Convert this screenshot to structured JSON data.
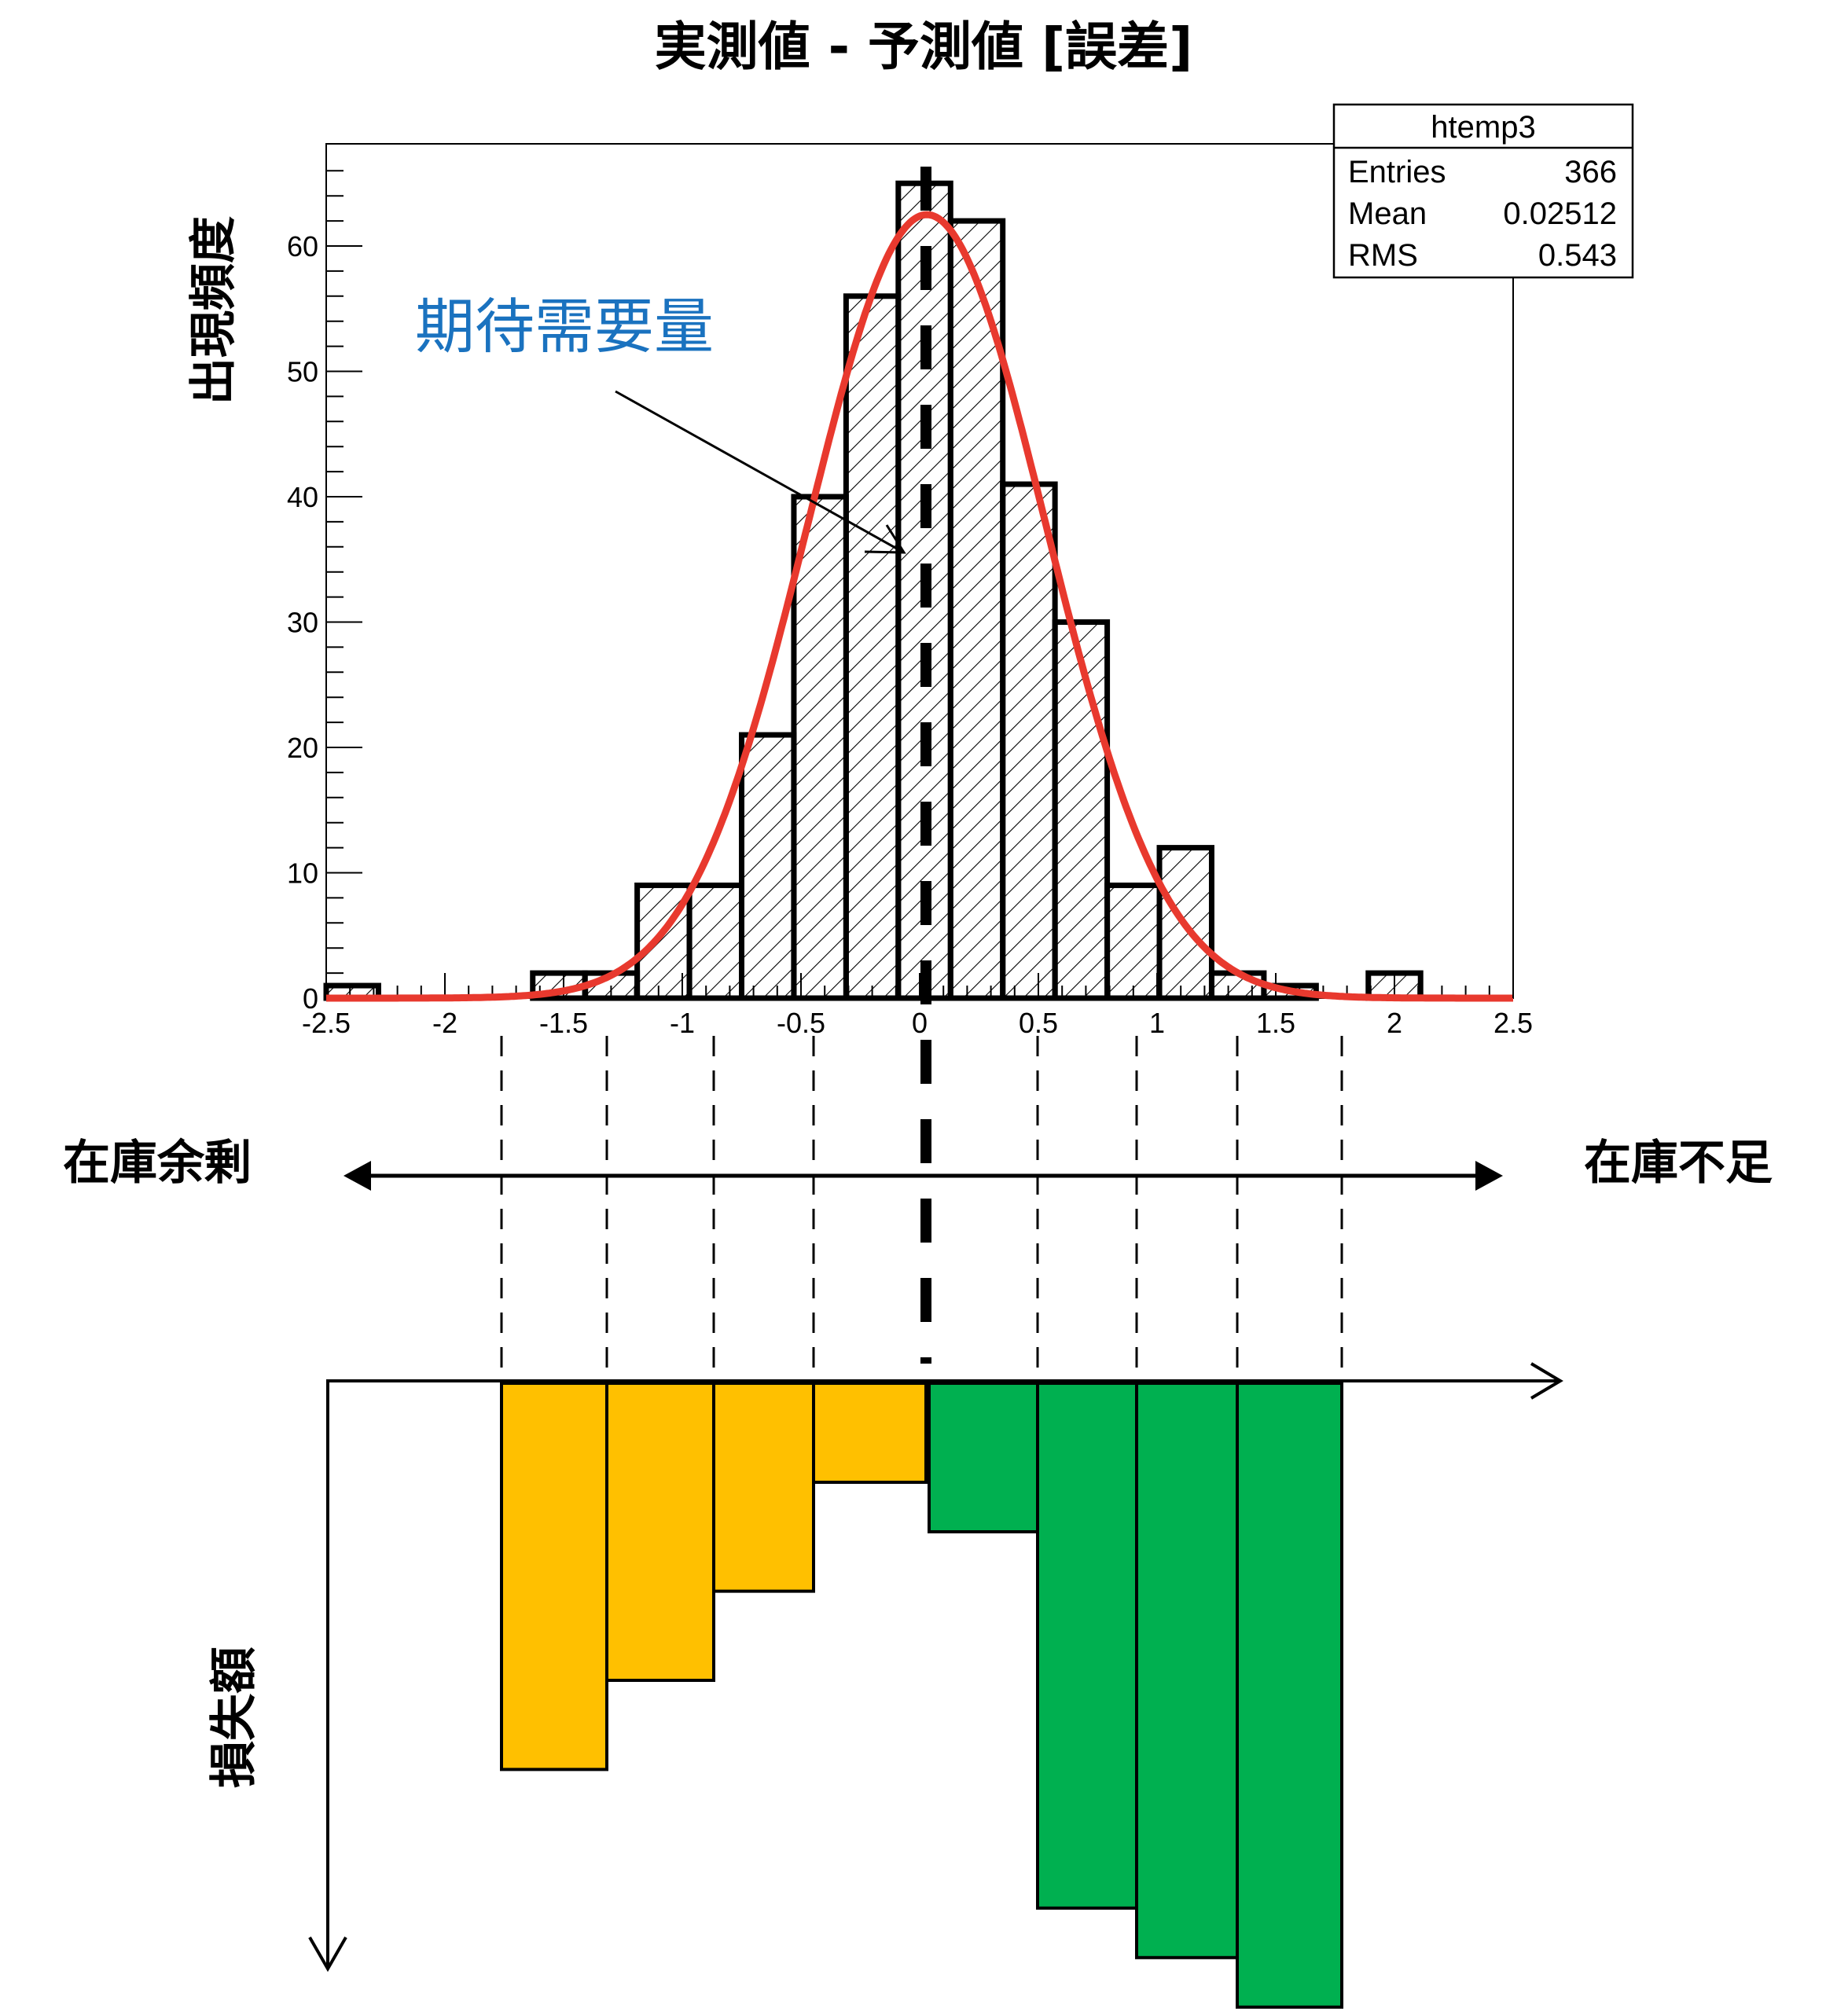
{
  "title": "実測値 - 予測値 [誤差]",
  "histogram": {
    "ylabel": "出現頻度",
    "annotation": "期待需要量",
    "stats_box": {
      "name": "htemp3",
      "rows": [
        {
          "label": "Entries",
          "value": "366"
        },
        {
          "label": "Mean",
          "value": "0.02512"
        },
        {
          "label": "RMS",
          "value": "0.543"
        }
      ]
    },
    "xticks": [
      "-2.5",
      "-2",
      "-1.5",
      "-1",
      "-0.5",
      "0",
      "0.5",
      "1",
      "1.5",
      "2",
      "2.5"
    ],
    "yticks": [
      "0",
      "10",
      "20",
      "30",
      "40",
      "50",
      "60"
    ]
  },
  "direction": {
    "left_label": "在庫余剰",
    "right_label": "在庫不足"
  },
  "loss_chart": {
    "ylabel": "損失額"
  },
  "colors": {
    "fit_curve": "#e8392e",
    "annotation": "#1a72bf",
    "surplus_bar": "#ffc000",
    "shortage_bar": "#00b050"
  },
  "chart_data": [
    {
      "type": "bar",
      "title": "実測値 - 予測値 [誤差]",
      "xlabel": "",
      "ylabel": "出現頻度",
      "xlim": [
        -2.5,
        2.5
      ],
      "ylim": [
        0,
        68
      ],
      "bin_width": 0.22,
      "bin_lefts": [
        -2.5,
        -1.63,
        -1.41,
        -1.19,
        -0.97,
        -0.75,
        -0.53,
        -0.31,
        -0.09,
        0.13,
        0.35,
        0.57,
        0.79,
        1.01,
        1.23,
        1.45,
        1.67,
        1.89
      ],
      "values": [
        1,
        2,
        2,
        9,
        9,
        21,
        40,
        56,
        65,
        62,
        41,
        30,
        9,
        12,
        2,
        1,
        0,
        2
      ],
      "fit": {
        "type": "gaussian",
        "mean": 0.03,
        "sigma": 0.5,
        "peak": 62.5,
        "label": "期待需要量"
      },
      "stats": {
        "name": "htemp3",
        "Entries": 366,
        "Mean": 0.02512,
        "RMS": 0.543
      },
      "reference_line_x": 0.0
    },
    {
      "type": "bar",
      "title": "損失額",
      "xlabel": "",
      "ylabel": "損失額",
      "note": "bars hang downward from axis; relative loss magnitudes (arbitrary units, 0-100)",
      "categories": [
        "-1.75〜-1.3",
        "-1.3〜-0.85",
        "-0.85〜-0.45",
        "-0.45〜0",
        "0〜0.45",
        "0.45〜0.9",
        "0.9〜1.3",
        "1.3〜1.75"
      ],
      "groups": [
        "在庫余剰",
        "在庫余剰",
        "在庫余剰",
        "在庫余剰",
        "在庫不足",
        "在庫不足",
        "在庫不足",
        "在庫不足"
      ],
      "values": [
        39,
        30,
        21,
        10,
        15,
        53,
        58,
        63
      ]
    }
  ]
}
